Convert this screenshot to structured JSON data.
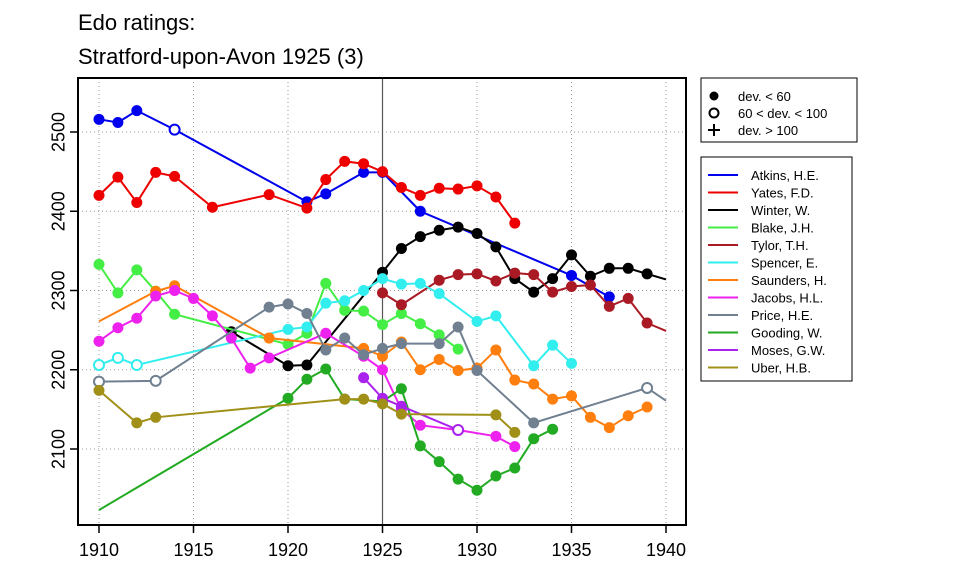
{
  "chart_data": {
    "type": "line",
    "title": "Edo ratings:",
    "subtitle": "Stratford-upon-Avon 1925 (3)",
    "xlabel": "",
    "ylabel": "",
    "xlim": [
      1909,
      1940
    ],
    "ylim": [
      2010,
      2570
    ],
    "xticks": [
      1910,
      1915,
      1920,
      1925,
      1930,
      1935,
      1940
    ],
    "yticks": [
      2100,
      2200,
      2300,
      2400,
      2500
    ],
    "vline": 1925,
    "grid": true,
    "marker_legend": [
      {
        "symbol": "filled-circle",
        "label": "dev. < 60"
      },
      {
        "symbol": "open-circle",
        "label": "60 < dev. < 100"
      },
      {
        "symbol": "plus",
        "label": "dev. > 100"
      }
    ],
    "series": [
      {
        "name": "Atkins, H.E.",
        "color": "#0000ee",
        "points": [
          [
            1910,
            2516,
            "f"
          ],
          [
            1911,
            2512,
            "f"
          ],
          [
            1912,
            2527,
            "f"
          ],
          [
            1914,
            2503,
            "o"
          ],
          [
            1921,
            2412,
            "f"
          ],
          [
            1922,
            2422,
            "f"
          ],
          [
            1924,
            2449,
            "f"
          ],
          [
            1925,
            2449,
            "f"
          ],
          [
            1927,
            2400,
            "f"
          ],
          [
            1935,
            2319,
            "f"
          ],
          [
            1937,
            2292,
            "f"
          ]
        ]
      },
      {
        "name": "Yates, F.D.",
        "color": "#ee0000",
        "points": [
          [
            1910,
            2420,
            "f"
          ],
          [
            1911,
            2443,
            "f"
          ],
          [
            1912,
            2411,
            "f"
          ],
          [
            1913,
            2449,
            "f"
          ],
          [
            1914,
            2444,
            "f"
          ],
          [
            1916,
            2405,
            "f"
          ],
          [
            1919,
            2421,
            "f"
          ],
          [
            1921,
            2404,
            "f"
          ],
          [
            1922,
            2440,
            "f"
          ],
          [
            1923,
            2463,
            "f"
          ],
          [
            1924,
            2460,
            "f"
          ],
          [
            1925,
            2450,
            "f"
          ],
          [
            1926,
            2430,
            "f"
          ],
          [
            1927,
            2420,
            "f"
          ],
          [
            1928,
            2429,
            "f"
          ],
          [
            1929,
            2428,
            "f"
          ],
          [
            1930,
            2432,
            "f"
          ],
          [
            1931,
            2418,
            "f"
          ],
          [
            1932,
            2385,
            "f"
          ]
        ]
      },
      {
        "name": "Winter, W.",
        "color": "#000000",
        "points": [
          [
            1917,
            2248,
            "f"
          ],
          [
            1920,
            2205,
            "f"
          ],
          [
            1921,
            2206,
            "f"
          ],
          [
            1925,
            2323,
            "f"
          ],
          [
            1926,
            2353,
            "f"
          ],
          [
            1927,
            2368,
            "f"
          ],
          [
            1928,
            2376,
            "f"
          ],
          [
            1929,
            2380,
            "f"
          ],
          [
            1930,
            2372,
            "f"
          ],
          [
            1931,
            2355,
            "f"
          ],
          [
            1932,
            2315,
            "f"
          ],
          [
            1933,
            2298,
            "f"
          ],
          [
            1934,
            2315,
            "f"
          ],
          [
            1935,
            2345,
            "f"
          ],
          [
            1936,
            2318,
            "f"
          ],
          [
            1937,
            2328,
            "f"
          ],
          [
            1938,
            2328,
            "f"
          ],
          [
            1939,
            2321,
            "f"
          ],
          [
            1940,
            2314,
            "n"
          ]
        ]
      },
      {
        "name": "Blake, J.H.",
        "color": "#44ee44",
        "points": [
          [
            1910,
            2333,
            "f"
          ],
          [
            1911,
            2297,
            "f"
          ],
          [
            1912,
            2326,
            "f"
          ],
          [
            1913,
            2299,
            "f"
          ],
          [
            1914,
            2270,
            "f"
          ],
          [
            1920,
            2232,
            "f"
          ],
          [
            1921,
            2246,
            "f"
          ],
          [
            1922,
            2309,
            "f"
          ],
          [
            1923,
            2275,
            "f"
          ],
          [
            1924,
            2274,
            "f"
          ],
          [
            1925,
            2257,
            "f"
          ],
          [
            1926,
            2271,
            "f"
          ],
          [
            1927,
            2258,
            "f"
          ],
          [
            1928,
            2244,
            "f"
          ],
          [
            1929,
            2226,
            "f"
          ]
        ]
      },
      {
        "name": "Tylor, T.H.",
        "color": "#aa1a25",
        "points": [
          [
            1925,
            2297,
            "f"
          ],
          [
            1926,
            2282,
            "f"
          ],
          [
            1928,
            2313,
            "f"
          ],
          [
            1929,
            2320,
            "f"
          ],
          [
            1930,
            2321,
            "f"
          ],
          [
            1931,
            2312,
            "f"
          ],
          [
            1932,
            2322,
            "f"
          ],
          [
            1933,
            2320,
            "f"
          ],
          [
            1934,
            2298,
            "f"
          ],
          [
            1935,
            2305,
            "f"
          ],
          [
            1936,
            2307,
            "f"
          ],
          [
            1937,
            2280,
            "f"
          ],
          [
            1938,
            2290,
            "f"
          ],
          [
            1939,
            2259,
            "f"
          ],
          [
            1940,
            2249,
            "n"
          ]
        ]
      },
      {
        "name": "Spencer, E.",
        "color": "#33eeee",
        "points": [
          [
            1910,
            2206,
            "o"
          ],
          [
            1911,
            2215,
            "o"
          ],
          [
            1912,
            2206,
            "o"
          ],
          [
            1920,
            2251,
            "f"
          ],
          [
            1921,
            2254,
            "f"
          ],
          [
            1922,
            2284,
            "f"
          ],
          [
            1923,
            2287,
            "f"
          ],
          [
            1924,
            2300,
            "f"
          ],
          [
            1925,
            2315,
            "f"
          ],
          [
            1926,
            2308,
            "f"
          ],
          [
            1927,
            2309,
            "f"
          ],
          [
            1928,
            2296,
            "f"
          ],
          [
            1930,
            2261,
            "f"
          ],
          [
            1931,
            2268,
            "f"
          ],
          [
            1933,
            2205,
            "f"
          ],
          [
            1934,
            2231,
            "f"
          ],
          [
            1935,
            2208,
            "f"
          ]
        ]
      },
      {
        "name": "Saunders, H.",
        "color": "#ff7f0e",
        "points": [
          [
            1910,
            2261,
            "n"
          ],
          [
            1913,
            2299,
            "f"
          ],
          [
            1914,
            2306,
            "f"
          ],
          [
            1919,
            2240,
            "f"
          ],
          [
            1924,
            2227,
            "f"
          ],
          [
            1925,
            2217,
            "f"
          ],
          [
            1926,
            2235,
            "f"
          ],
          [
            1927,
            2200,
            "f"
          ],
          [
            1928,
            2213,
            "f"
          ],
          [
            1929,
            2199,
            "f"
          ],
          [
            1930,
            2202,
            "f"
          ],
          [
            1931,
            2225,
            "f"
          ],
          [
            1932,
            2187,
            "f"
          ],
          [
            1933,
            2182,
            "f"
          ],
          [
            1934,
            2163,
            "f"
          ],
          [
            1935,
            2167,
            "f"
          ],
          [
            1936,
            2140,
            "f"
          ],
          [
            1937,
            2127,
            "f"
          ],
          [
            1938,
            2142,
            "f"
          ],
          [
            1939,
            2153,
            "f"
          ]
        ]
      },
      {
        "name": "Jacobs, H.L.",
        "color": "#ee22ee",
        "points": [
          [
            1910,
            2236,
            "f"
          ],
          [
            1911,
            2253,
            "f"
          ],
          [
            1912,
            2265,
            "f"
          ],
          [
            1913,
            2293,
            "f"
          ],
          [
            1914,
            2300,
            "f"
          ],
          [
            1915,
            2290,
            "f"
          ],
          [
            1916,
            2268,
            "f"
          ],
          [
            1917,
            2240,
            "f"
          ],
          [
            1918,
            2202,
            "f"
          ],
          [
            1919,
            2215,
            "f"
          ],
          [
            1922,
            2246,
            "f"
          ],
          [
            1924,
            2217,
            "f"
          ],
          [
            1925,
            2200,
            "f"
          ],
          [
            1926,
            2150,
            "f"
          ],
          [
            1927,
            2130,
            "f"
          ],
          [
            1929,
            2124,
            "f"
          ],
          [
            1931,
            2116,
            "f"
          ],
          [
            1932,
            2103,
            "f"
          ]
        ]
      },
      {
        "name": "Price, H.E.",
        "color": "#708090",
        "points": [
          [
            1910,
            2185,
            "o"
          ],
          [
            1913,
            2186,
            "o"
          ],
          [
            1919,
            2279,
            "f"
          ],
          [
            1920,
            2283,
            "f"
          ],
          [
            1921,
            2271,
            "f"
          ],
          [
            1922,
            2225,
            "f"
          ],
          [
            1923,
            2240,
            "f"
          ],
          [
            1924,
            2219,
            "f"
          ],
          [
            1925,
            2227,
            "f"
          ],
          [
            1926,
            2233,
            "f"
          ],
          [
            1928,
            2233,
            "f"
          ],
          [
            1929,
            2254,
            "f"
          ],
          [
            1930,
            2199,
            "f"
          ],
          [
            1933,
            2133,
            "f"
          ],
          [
            1939,
            2177,
            "o"
          ],
          [
            1940,
            2161,
            "n"
          ]
        ]
      },
      {
        "name": "Gooding, W.",
        "color": "#22aa22",
        "points": [
          [
            1910,
            2023,
            "n"
          ],
          [
            1920,
            2164,
            "f"
          ],
          [
            1921,
            2188,
            "f"
          ],
          [
            1922,
            2201,
            "f"
          ],
          [
            1923,
            2163,
            "f"
          ],
          [
            1925,
            2160,
            "f"
          ],
          [
            1926,
            2176,
            "f"
          ],
          [
            1927,
            2104,
            "f"
          ],
          [
            1928,
            2084,
            "f"
          ],
          [
            1929,
            2062,
            "f"
          ],
          [
            1930,
            2048,
            "f"
          ],
          [
            1931,
            2066,
            "f"
          ],
          [
            1932,
            2076,
            "f"
          ],
          [
            1933,
            2113,
            "f"
          ],
          [
            1934,
            2125,
            "f"
          ]
        ]
      },
      {
        "name": "Moses, G.W.",
        "color": "#aa22ee",
        "points": [
          [
            1924,
            2190,
            "f"
          ],
          [
            1925,
            2164,
            "f"
          ],
          [
            1926,
            2154,
            "f"
          ],
          [
            1929,
            2124,
            "o"
          ]
        ]
      },
      {
        "name": "Uber, H.B.",
        "color": "#a09018",
        "points": [
          [
            1910,
            2174,
            "f"
          ],
          [
            1912,
            2133,
            "f"
          ],
          [
            1913,
            2140,
            "f"
          ],
          [
            1923,
            2163,
            "f"
          ],
          [
            1924,
            2163,
            "f"
          ],
          [
            1925,
            2157,
            "f"
          ],
          [
            1926,
            2144,
            "f"
          ],
          [
            1931,
            2143,
            "f"
          ],
          [
            1932,
            2121,
            "f"
          ]
        ]
      }
    ]
  }
}
